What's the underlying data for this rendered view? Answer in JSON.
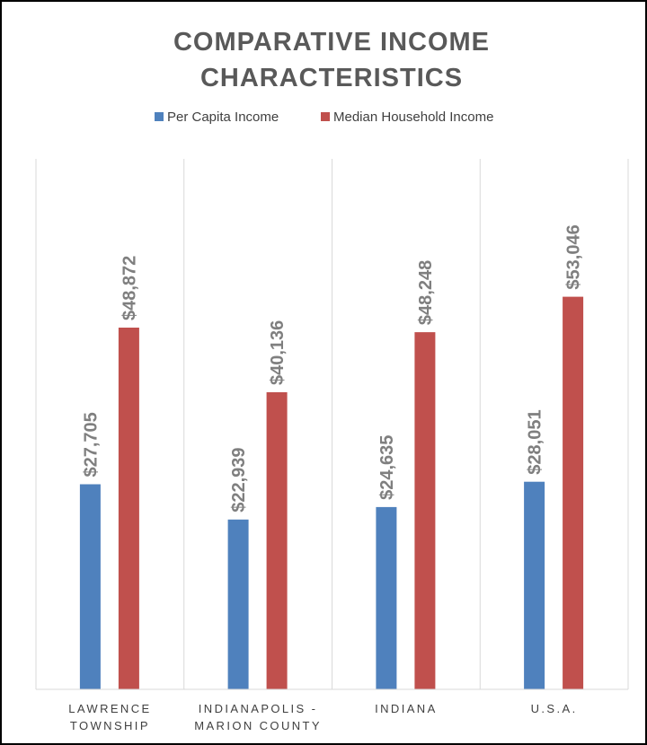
{
  "chart_data": {
    "type": "bar",
    "title": "COMPARATIVE INCOME CHARACTERISTICS",
    "title_lines": [
      "COMPARATIVE INCOME",
      "CHARACTERISTICS"
    ],
    "categories": [
      [
        "LAWRENCE",
        "TOWNSHIP"
      ],
      [
        "INDIANAPOLIS -",
        "MARION COUNTY"
      ],
      [
        "INDIANA"
      ],
      [
        "U.S.A."
      ]
    ],
    "series": [
      {
        "name": "Per Capita Income",
        "color": "#4f81bd",
        "values": [
          27705,
          22939,
          24635,
          28051
        ],
        "labels": [
          "$27,705",
          "$22,939",
          "$24,635",
          "$28,051"
        ]
      },
      {
        "name": "Median Household Income",
        "color": "#c0504d",
        "values": [
          48872,
          40136,
          48248,
          53046
        ],
        "labels": [
          "$48,872",
          "$40,136",
          "$48,248",
          "$53,046"
        ]
      }
    ],
    "legend_position": "top",
    "grid": "vertical category separators",
    "ylim": [
      0,
      65000
    ]
  }
}
